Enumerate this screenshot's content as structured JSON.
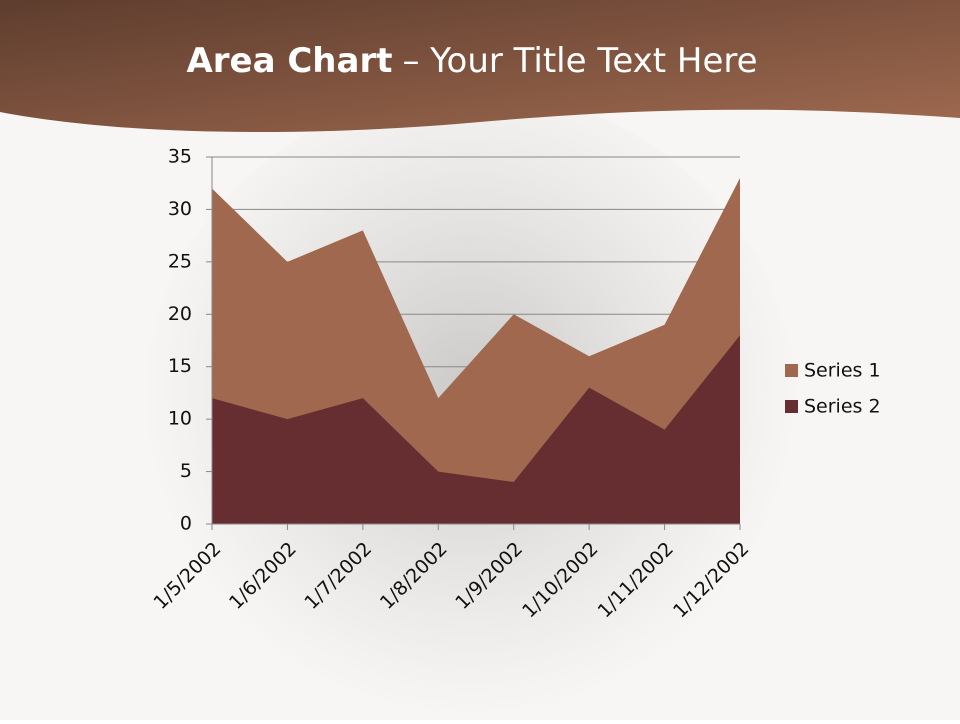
{
  "title_bold": "Area Chart",
  "title_rest": "– Your Title Text Here",
  "chart_data": {
    "type": "area",
    "categories": [
      "1/5/2002",
      "1/6/2002",
      "1/7/2002",
      "1/8/2002",
      "1/9/2002",
      "1/10/2002",
      "1/11/2002",
      "1/12/2002"
    ],
    "series": [
      {
        "name": "Series 1",
        "color": "#a0694f",
        "values": [
          32,
          25,
          28,
          12,
          20,
          16,
          19,
          33
        ]
      },
      {
        "name": "Series 2",
        "color": "#662e31",
        "values": [
          12,
          10,
          12,
          5,
          4,
          13,
          9,
          18
        ]
      }
    ],
    "ylim": [
      0,
      35
    ],
    "yticks": [
      0,
      5,
      10,
      15,
      20,
      25,
      30,
      35
    ],
    "grid": true,
    "legend": "right"
  }
}
